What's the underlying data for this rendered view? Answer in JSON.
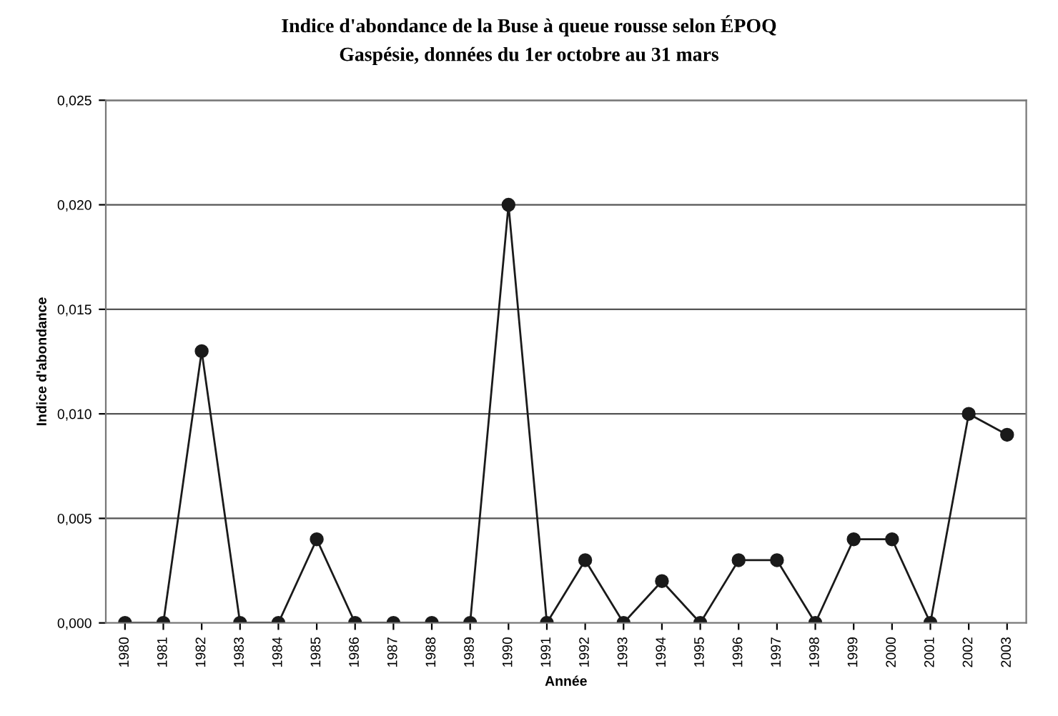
{
  "chart_data": {
    "type": "line",
    "title": "Indice d'abondance de la Buse à queue rousse selon ÉPOQ",
    "subtitle": "Gaspésie, données du 1er octobre au 31 mars",
    "xlabel": "Année",
    "ylabel": "Indice d'abondance",
    "categories": [
      "1980",
      "1981",
      "1982",
      "1983",
      "1984",
      "1985",
      "1986",
      "1987",
      "1988",
      "1989",
      "1990",
      "1991",
      "1992",
      "1993",
      "1994",
      "1995",
      "1996",
      "1997",
      "1998",
      "1999",
      "2000",
      "2001",
      "2002",
      "2003"
    ],
    "series": [
      {
        "color": "#1a1a1a",
        "values": [
          0,
          0,
          0.013,
          0,
          0,
          0.004,
          0,
          0,
          0,
          0,
          0.02,
          0,
          0.003,
          0,
          0.002,
          0,
          0.003,
          0.003,
          0,
          0.004,
          0.004,
          0,
          0.01,
          0.009
        ]
      }
    ],
    "ylim": [
      0,
      0.025
    ],
    "yticks": [
      {
        "value": 0,
        "label": "0,000"
      },
      {
        "value": 0.005,
        "label": "0,005"
      },
      {
        "value": 0.01,
        "label": "0,010"
      },
      {
        "value": 0.015,
        "label": "0,015"
      },
      {
        "value": 0.02,
        "label": "0,020"
      },
      {
        "value": 0.025,
        "label": "0,025"
      }
    ],
    "grid": "y",
    "marker": "circle",
    "line_style": "solid"
  }
}
